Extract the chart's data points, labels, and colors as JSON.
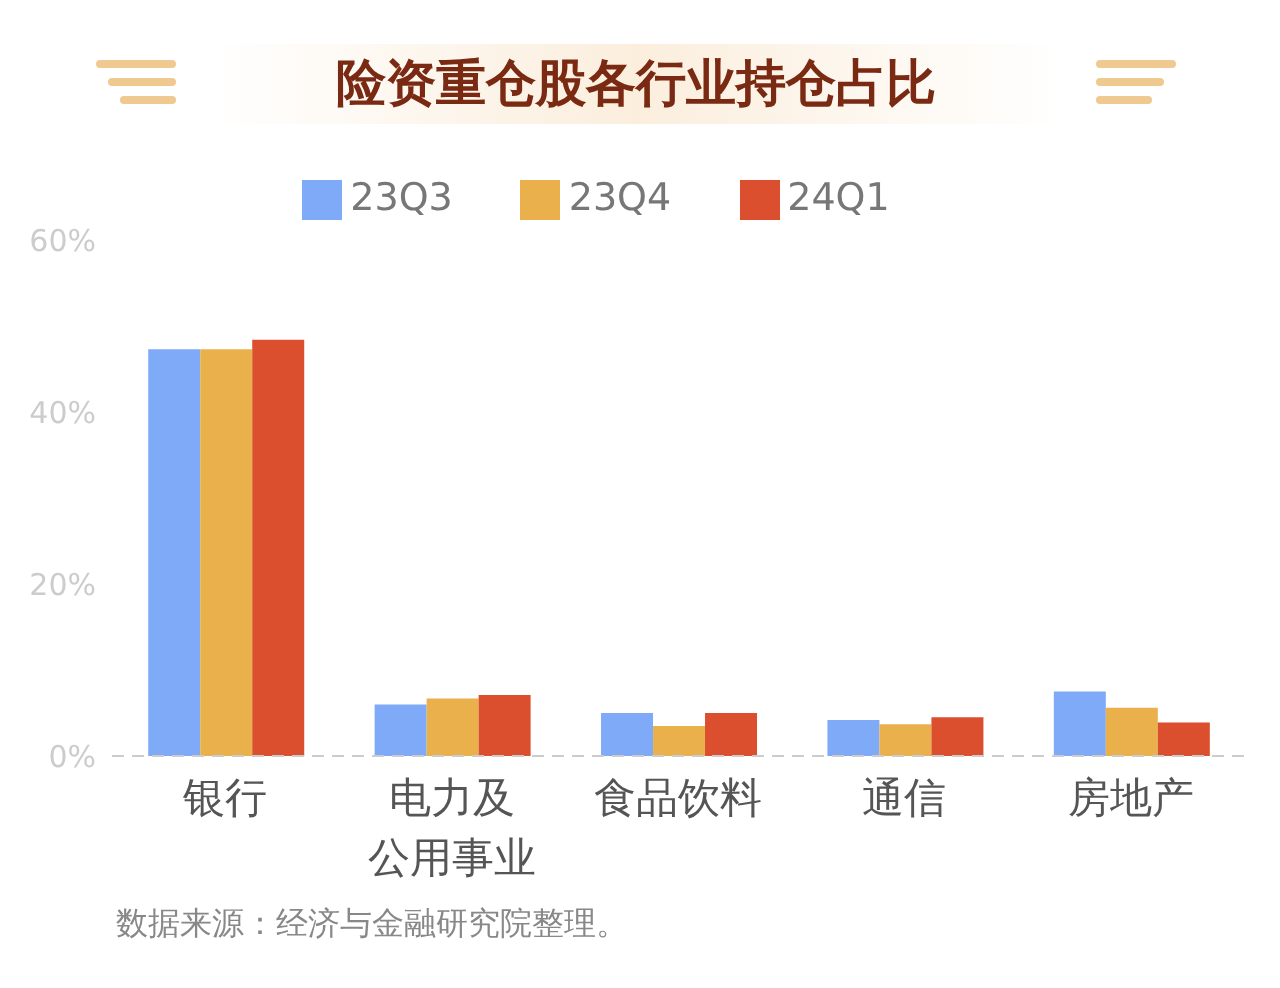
{
  "chart_data": {
    "type": "bar",
    "title": "险资重仓股各行业持仓占比",
    "categories": [
      "银行",
      "电力及公用事业",
      "食品饮料",
      "通信",
      "房地产"
    ],
    "series": [
      {
        "name": "23Q3",
        "color": "#7faaf7",
        "values": [
          47.3,
          6.0,
          5.0,
          4.2,
          7.5
        ]
      },
      {
        "name": "23Q4",
        "color": "#eab04c",
        "values": [
          47.3,
          6.7,
          3.5,
          3.7,
          5.6
        ]
      },
      {
        "name": "24Q1",
        "color": "#dc4f2e",
        "values": [
          48.4,
          7.1,
          5.0,
          4.5,
          3.9
        ]
      }
    ],
    "ylim": [
      0,
      60
    ],
    "yticks": [
      {
        "value": 0,
        "label": "0%"
      },
      {
        "value": 20,
        "label": "20%"
      },
      {
        "value": 40,
        "label": "40%"
      },
      {
        "value": 60,
        "label": "60%"
      }
    ],
    "grid": false,
    "legend": "top",
    "annotations": [
      "数据来源：经济与金融研究院整理。"
    ]
  }
}
